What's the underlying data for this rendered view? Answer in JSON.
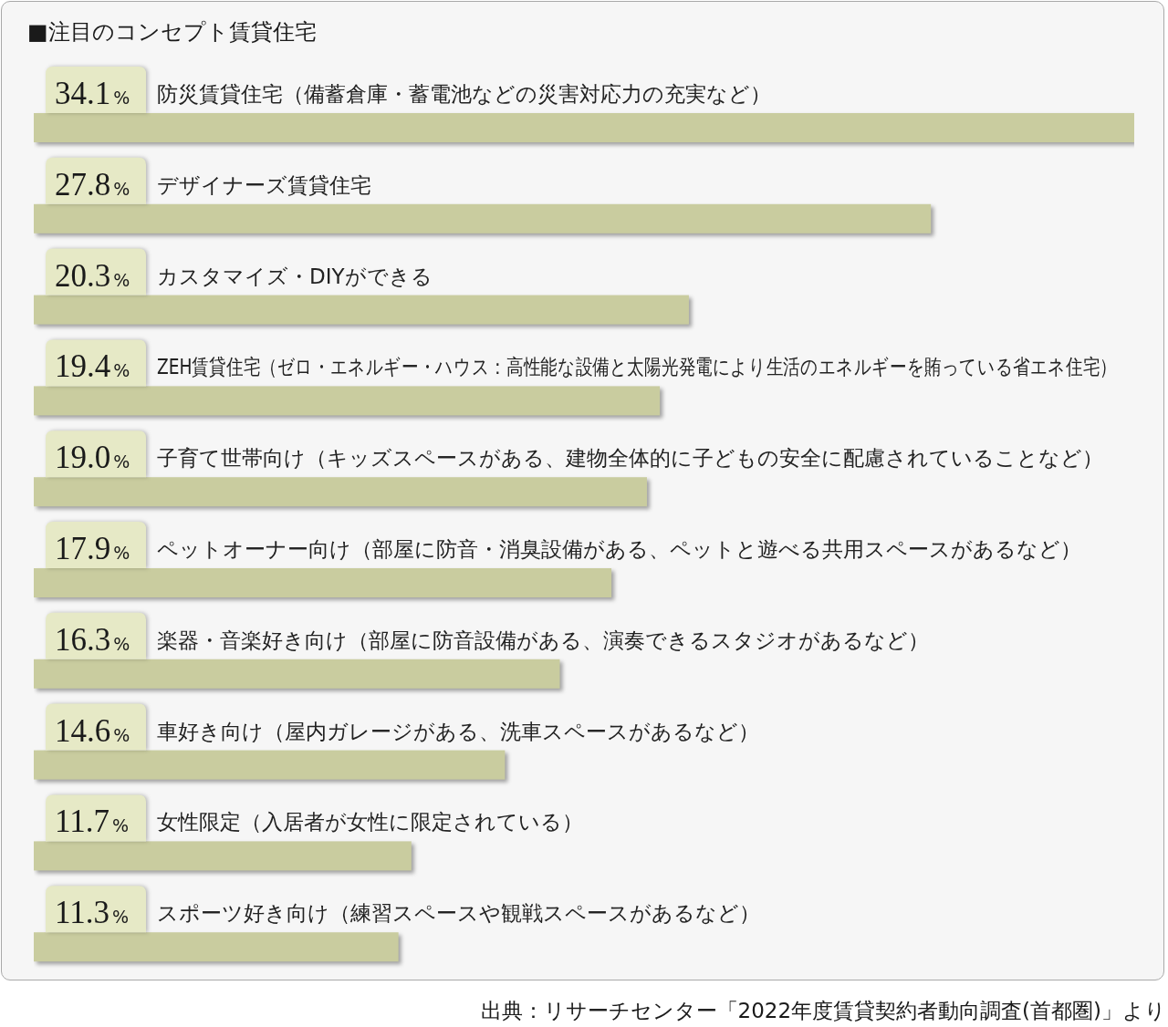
{
  "chart_data": {
    "type": "bar",
    "orientation": "horizontal",
    "title": "■注目のコンセプト賃貸住宅",
    "categories": [
      "防災賃貸住宅（備蓄倉庫・蓄電池などの災害対応力の充実など）",
      "デザイナーズ賃貸住宅",
      "カスタマイズ・DIYができる",
      "ZEH賃貸住宅（ゼロ・エネルギー・ハウス：高性能な設備と太陽光発電により生活のエネルギーを賄っている省エネ住宅）",
      "子育て世帯向け（キッズスペースがある、建物全体的に子どもの安全に配慮されていることなど）",
      "ペットオーナー向け（部屋に防音・消臭設備がある、ペットと遊べる共用スペースがあるなど）",
      "楽器・音楽好き向け（部屋に防音設備がある、演奏できるスタジオがあるなど）",
      "車好き向け（屋内ガレージがある、洗車スペースがあるなど）",
      "女性限定（入居者が女性に限定されている）",
      "スポーツ好き向け（練習スペースや観戦スペースがあるなど）"
    ],
    "values": [
      34.1,
      27.8,
      20.3,
      19.4,
      19.0,
      17.9,
      16.3,
      14.6,
      11.7,
      11.3
    ],
    "value_labels": [
      "34.1%",
      "27.8%",
      "20.3%",
      "19.4%",
      "19.0%",
      "17.9%",
      "16.3%",
      "14.6%",
      "11.7%",
      "11.3%"
    ],
    "color": "#c9cc9f",
    "annotations": [
      "出典：リサーチセンター「2022年度賃貸契約者動向調査(首都圏)」より"
    ]
  }
}
